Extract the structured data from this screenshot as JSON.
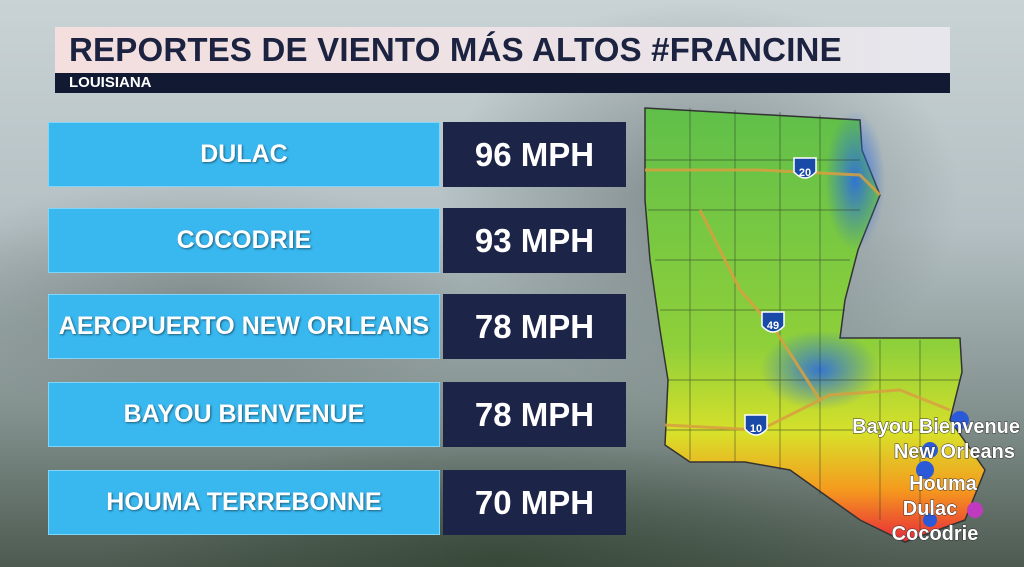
{
  "header": {
    "title": "REPORTES DE VIENTO MÁS ALTOS #FRANCINE",
    "subtitle": "LOUISIANA"
  },
  "reports": [
    {
      "location": "DULAC",
      "wind": "96 MPH"
    },
    {
      "location": "COCODRIE",
      "wind": "93 MPH"
    },
    {
      "location": "AEROPUERTO NEW ORLEANS",
      "wind": "78 MPH"
    },
    {
      "location": "BAYOU BIENVENUE",
      "wind": "78 MPH"
    },
    {
      "location": "HOUMA TERREBONNE",
      "wind": "70 MPH"
    }
  ],
  "map": {
    "interstates": [
      "20",
      "49",
      "10"
    ],
    "labels": [
      "Bayou Bienvenue",
      "New Orleans",
      "Houma",
      "Dulac",
      "Cocodrie"
    ]
  }
}
